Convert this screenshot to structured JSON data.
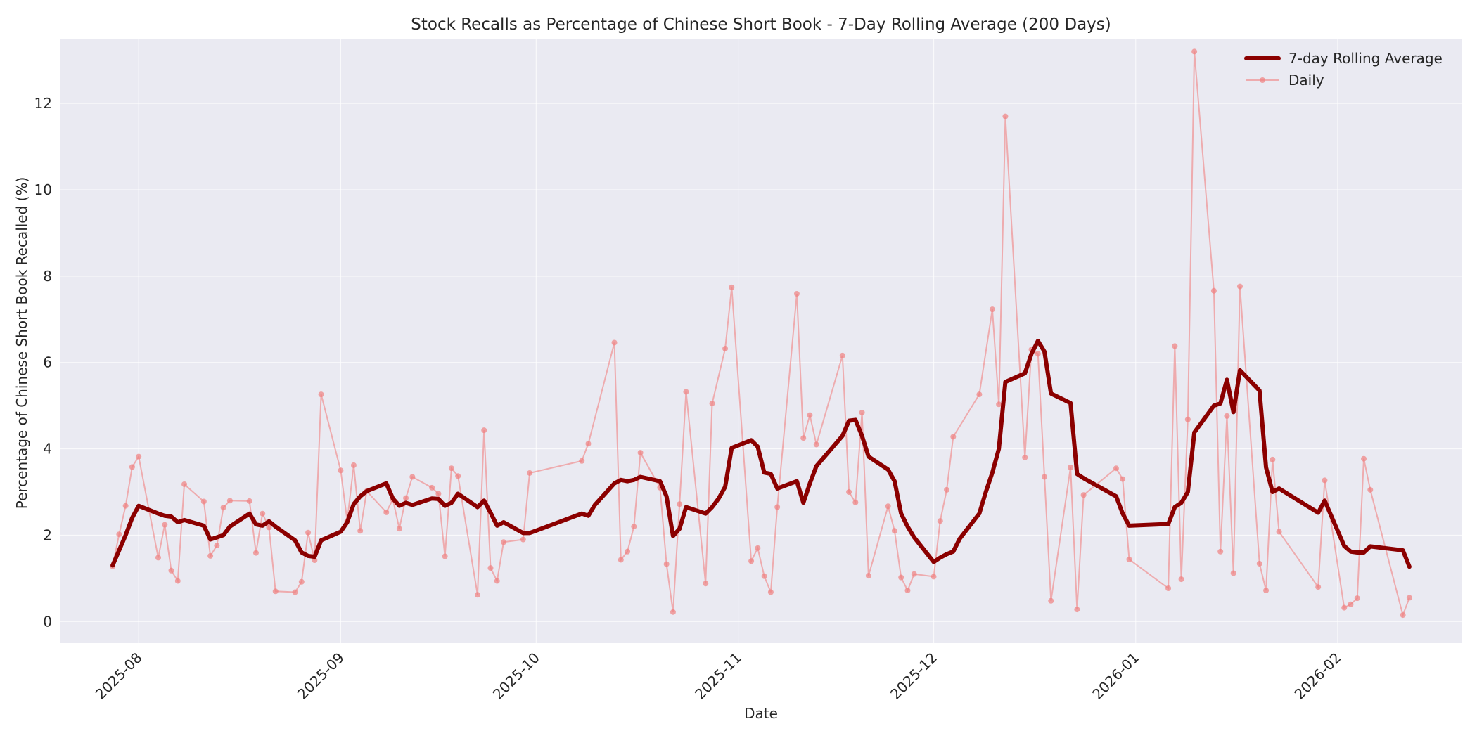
{
  "chart_data": {
    "type": "line",
    "title": "Stock Recalls as Percentage of Chinese Short Book - 7-Day Rolling Average (200 Days)",
    "xlabel": "Date",
    "ylabel": "Percentage of Chinese Short Book Recalled (%)",
    "ylim": [
      -0.5,
      13.5
    ],
    "yticks": [
      0,
      2,
      4,
      6,
      8,
      10,
      12
    ],
    "xticks": [
      "2025-08",
      "2025-09",
      "2025-10",
      "2025-11",
      "2025-12",
      "2026-01",
      "2026-02"
    ],
    "xlim": [
      "2025-07-20",
      "2026-02-20"
    ],
    "grid": true,
    "legend_position": "upper right",
    "colors": {
      "rolling": "#8b0000",
      "daily": "#f08080",
      "plot_bg": "#eaeaf2",
      "grid": "#ffffff"
    },
    "series": [
      {
        "name": "7-day Rolling Average",
        "style": "thick-line",
        "points": [
          [
            "2025-07-28",
            1.3
          ],
          [
            "2025-07-30",
            2.0
          ],
          [
            "2025-07-31",
            2.4
          ],
          [
            "2025-08-01",
            2.68
          ],
          [
            "2025-08-04",
            2.5
          ],
          [
            "2025-08-05",
            2.45
          ],
          [
            "2025-08-06",
            2.43
          ],
          [
            "2025-08-07",
            2.3
          ],
          [
            "2025-08-08",
            2.35
          ],
          [
            "2025-08-11",
            2.22
          ],
          [
            "2025-08-12",
            1.9
          ],
          [
            "2025-08-13",
            1.95
          ],
          [
            "2025-08-14",
            2.0
          ],
          [
            "2025-08-15",
            2.2
          ],
          [
            "2025-08-18",
            2.5
          ],
          [
            "2025-08-19",
            2.25
          ],
          [
            "2025-08-20",
            2.22
          ],
          [
            "2025-08-21",
            2.32
          ],
          [
            "2025-08-22",
            2.2
          ],
          [
            "2025-08-25",
            1.88
          ],
          [
            "2025-08-26",
            1.6
          ],
          [
            "2025-08-27",
            1.52
          ],
          [
            "2025-08-28",
            1.5
          ],
          [
            "2025-08-29",
            1.88
          ],
          [
            "2025-09-01",
            2.08
          ],
          [
            "2025-09-02",
            2.3
          ],
          [
            "2025-09-03",
            2.72
          ],
          [
            "2025-09-04",
            2.9
          ],
          [
            "2025-09-05",
            3.02
          ],
          [
            "2025-09-08",
            3.2
          ],
          [
            "2025-09-09",
            2.85
          ],
          [
            "2025-09-10",
            2.68
          ],
          [
            "2025-09-11",
            2.75
          ],
          [
            "2025-09-12",
            2.7
          ],
          [
            "2025-09-15",
            2.85
          ],
          [
            "2025-09-16",
            2.84
          ],
          [
            "2025-09-17",
            2.68
          ],
          [
            "2025-09-18",
            2.75
          ],
          [
            "2025-09-19",
            2.96
          ],
          [
            "2025-09-22",
            2.65
          ],
          [
            "2025-09-23",
            2.8
          ],
          [
            "2025-09-24",
            2.52
          ],
          [
            "2025-09-25",
            2.22
          ],
          [
            "2025-09-26",
            2.3
          ],
          [
            "2025-09-29",
            2.05
          ],
          [
            "2025-09-30",
            2.05
          ],
          [
            "2025-10-08",
            2.5
          ],
          [
            "2025-10-09",
            2.45
          ],
          [
            "2025-10-10",
            2.7
          ],
          [
            "2025-10-13",
            3.2
          ],
          [
            "2025-10-14",
            3.28
          ],
          [
            "2025-10-15",
            3.25
          ],
          [
            "2025-10-16",
            3.28
          ],
          [
            "2025-10-17",
            3.35
          ],
          [
            "2025-10-20",
            3.25
          ],
          [
            "2025-10-21",
            2.9
          ],
          [
            "2025-10-22",
            1.98
          ],
          [
            "2025-10-23",
            2.15
          ],
          [
            "2025-10-24",
            2.65
          ],
          [
            "2025-10-27",
            2.5
          ],
          [
            "2025-10-28",
            2.65
          ],
          [
            "2025-10-29",
            2.85
          ],
          [
            "2025-10-30",
            3.12
          ],
          [
            "2025-10-31",
            4.02
          ],
          [
            "2025-11-03",
            4.2
          ],
          [
            "2025-11-04",
            4.05
          ],
          [
            "2025-11-05",
            3.45
          ],
          [
            "2025-11-06",
            3.42
          ],
          [
            "2025-11-07",
            3.08
          ],
          [
            "2025-11-10",
            3.25
          ],
          [
            "2025-11-11",
            2.75
          ],
          [
            "2025-11-12",
            3.2
          ],
          [
            "2025-11-13",
            3.6
          ],
          [
            "2025-11-17",
            4.3
          ],
          [
            "2025-11-18",
            4.65
          ],
          [
            "2025-11-19",
            4.67
          ],
          [
            "2025-11-20",
            4.3
          ],
          [
            "2025-11-21",
            3.82
          ],
          [
            "2025-11-24",
            3.52
          ],
          [
            "2025-11-25",
            3.25
          ],
          [
            "2025-11-26",
            2.5
          ],
          [
            "2025-11-27",
            2.2
          ],
          [
            "2025-11-28",
            1.95
          ],
          [
            "2025-12-01",
            1.38
          ],
          [
            "2025-12-02",
            1.48
          ],
          [
            "2025-12-03",
            1.56
          ],
          [
            "2025-12-04",
            1.62
          ],
          [
            "2025-12-05",
            1.92
          ],
          [
            "2025-12-08",
            2.5
          ],
          [
            "2025-12-09",
            3.0
          ],
          [
            "2025-12-10",
            3.45
          ],
          [
            "2025-12-11",
            4.0
          ],
          [
            "2025-12-12",
            5.55
          ],
          [
            "2025-12-15",
            5.75
          ],
          [
            "2025-12-16",
            6.2
          ],
          [
            "2025-12-17",
            6.5
          ],
          [
            "2025-12-18",
            6.25
          ],
          [
            "2025-12-19",
            5.28
          ],
          [
            "2025-12-22",
            5.06
          ],
          [
            "2025-12-23",
            3.42
          ],
          [
            "2025-12-24",
            3.32
          ],
          [
            "2025-12-29",
            2.9
          ],
          [
            "2025-12-30",
            2.5
          ],
          [
            "2025-12-31",
            2.22
          ],
          [
            "2026-01-06",
            2.26
          ],
          [
            "2026-01-07",
            2.65
          ],
          [
            "2026-01-08",
            2.75
          ],
          [
            "2026-01-09",
            3.0
          ],
          [
            "2026-01-10",
            4.38
          ],
          [
            "2026-01-13",
            5.0
          ],
          [
            "2026-01-14",
            5.05
          ],
          [
            "2026-01-15",
            5.6
          ],
          [
            "2026-01-16",
            4.85
          ],
          [
            "2026-01-17",
            5.82
          ],
          [
            "2026-01-20",
            5.35
          ],
          [
            "2026-01-21",
            3.57
          ],
          [
            "2026-01-22",
            3.0
          ],
          [
            "2026-01-23",
            3.08
          ],
          [
            "2026-01-29",
            2.52
          ],
          [
            "2026-01-30",
            2.8
          ],
          [
            "2026-02-02",
            1.75
          ],
          [
            "2026-02-03",
            1.62
          ],
          [
            "2026-02-04",
            1.6
          ],
          [
            "2026-02-05",
            1.6
          ],
          [
            "2026-02-06",
            1.74
          ],
          [
            "2026-02-11",
            1.65
          ],
          [
            "2026-02-12",
            1.27
          ]
        ]
      },
      {
        "name": "Daily",
        "style": "thin-line-markers",
        "points": [
          [
            "2025-07-28",
            1.28
          ],
          [
            "2025-07-29",
            2.02
          ],
          [
            "2025-07-30",
            2.68
          ],
          [
            "2025-07-31",
            3.58
          ],
          [
            "2025-08-01",
            3.82
          ],
          [
            "2025-08-04",
            1.48
          ],
          [
            "2025-08-05",
            2.24
          ],
          [
            "2025-08-06",
            1.18
          ],
          [
            "2025-08-07",
            0.94
          ],
          [
            "2025-08-08",
            3.18
          ],
          [
            "2025-08-11",
            2.78
          ],
          [
            "2025-08-12",
            1.52
          ],
          [
            "2025-08-13",
            1.76
          ],
          [
            "2025-08-14",
            2.64
          ],
          [
            "2025-08-15",
            2.8
          ],
          [
            "2025-08-18",
            2.79
          ],
          [
            "2025-08-19",
            1.59
          ],
          [
            "2025-08-20",
            2.5
          ],
          [
            "2025-08-21",
            2.18
          ],
          [
            "2025-08-22",
            0.7
          ],
          [
            "2025-08-25",
            0.68
          ],
          [
            "2025-08-26",
            0.92
          ],
          [
            "2025-08-27",
            2.06
          ],
          [
            "2025-08-28",
            1.42
          ],
          [
            "2025-08-29",
            5.26
          ],
          [
            "2025-09-01",
            3.5
          ],
          [
            "2025-09-02",
            2.33
          ],
          [
            "2025-09-03",
            3.62
          ],
          [
            "2025-09-04",
            2.1
          ],
          [
            "2025-09-05",
            3.02
          ],
          [
            "2025-09-08",
            2.53
          ],
          [
            "2025-09-09",
            2.83
          ],
          [
            "2025-09-10",
            2.15
          ],
          [
            "2025-09-11",
            2.86
          ],
          [
            "2025-09-12",
            3.35
          ],
          [
            "2025-09-15",
            3.1
          ],
          [
            "2025-09-16",
            2.96
          ],
          [
            "2025-09-17",
            1.51
          ],
          [
            "2025-09-18",
            3.55
          ],
          [
            "2025-09-19",
            3.37
          ],
          [
            "2025-09-22",
            0.62
          ],
          [
            "2025-09-23",
            4.43
          ],
          [
            "2025-09-24",
            1.24
          ],
          [
            "2025-09-25",
            0.94
          ],
          [
            "2025-09-26",
            1.84
          ],
          [
            "2025-09-29",
            1.9
          ],
          [
            "2025-09-30",
            3.44
          ],
          [
            "2025-10-08",
            3.72
          ],
          [
            "2025-10-09",
            4.12
          ],
          [
            "2025-10-13",
            6.46
          ],
          [
            "2025-10-14",
            1.43
          ],
          [
            "2025-10-15",
            1.62
          ],
          [
            "2025-10-16",
            2.2
          ],
          [
            "2025-10-17",
            3.91
          ],
          [
            "2025-10-20",
            3.1
          ],
          [
            "2025-10-21",
            1.33
          ],
          [
            "2025-10-22",
            0.22
          ],
          [
            "2025-10-23",
            2.72
          ],
          [
            "2025-10-24",
            5.32
          ],
          [
            "2025-10-27",
            0.88
          ],
          [
            "2025-10-28",
            5.05
          ],
          [
            "2025-10-30",
            6.32
          ],
          [
            "2025-10-31",
            7.74
          ],
          [
            "2025-11-03",
            1.4
          ],
          [
            "2025-11-04",
            1.7
          ],
          [
            "2025-11-05",
            1.05
          ],
          [
            "2025-11-06",
            0.68
          ],
          [
            "2025-11-07",
            2.65
          ],
          [
            "2025-11-10",
            7.59
          ],
          [
            "2025-11-11",
            4.25
          ],
          [
            "2025-11-12",
            4.78
          ],
          [
            "2025-11-13",
            4.1
          ],
          [
            "2025-11-17",
            6.16
          ],
          [
            "2025-11-18",
            3.0
          ],
          [
            "2025-11-19",
            2.76
          ],
          [
            "2025-11-20",
            4.84
          ],
          [
            "2025-11-21",
            1.06
          ],
          [
            "2025-11-24",
            2.67
          ],
          [
            "2025-11-25",
            2.1
          ],
          [
            "2025-11-26",
            1.02
          ],
          [
            "2025-11-27",
            0.72
          ],
          [
            "2025-11-28",
            1.1
          ],
          [
            "2025-12-01",
            1.04
          ],
          [
            "2025-12-02",
            2.33
          ],
          [
            "2025-12-03",
            3.05
          ],
          [
            "2025-12-04",
            4.28
          ],
          [
            "2025-12-08",
            5.26
          ],
          [
            "2025-12-10",
            7.23
          ],
          [
            "2025-12-11",
            5.03
          ],
          [
            "2025-12-12",
            11.7
          ],
          [
            "2025-12-15",
            3.8
          ],
          [
            "2025-12-16",
            6.3
          ],
          [
            "2025-12-17",
            6.2
          ],
          [
            "2025-12-18",
            3.35
          ],
          [
            "2025-12-19",
            0.48
          ],
          [
            "2025-12-22",
            3.57
          ],
          [
            "2025-12-23",
            0.28
          ],
          [
            "2025-12-24",
            2.93
          ],
          [
            "2025-12-29",
            3.55
          ],
          [
            "2025-12-30",
            3.3
          ],
          [
            "2025-12-31",
            1.44
          ],
          [
            "2026-01-06",
            0.77
          ],
          [
            "2026-01-07",
            6.38
          ],
          [
            "2026-01-08",
            0.98
          ],
          [
            "2026-01-09",
            4.68
          ],
          [
            "2026-01-10",
            13.2
          ],
          [
            "2026-01-13",
            7.66
          ],
          [
            "2026-01-14",
            1.62
          ],
          [
            "2026-01-15",
            4.76
          ],
          [
            "2026-01-16",
            1.12
          ],
          [
            "2026-01-17",
            7.76
          ],
          [
            "2026-01-20",
            1.34
          ],
          [
            "2026-01-21",
            0.72
          ],
          [
            "2026-01-22",
            3.75
          ],
          [
            "2026-01-23",
            2.08
          ],
          [
            "2026-01-29",
            0.8
          ],
          [
            "2026-01-30",
            3.27
          ],
          [
            "2026-02-02",
            0.32
          ],
          [
            "2026-02-03",
            0.4
          ],
          [
            "2026-02-04",
            0.54
          ],
          [
            "2026-02-05",
            3.77
          ],
          [
            "2026-02-06",
            3.05
          ],
          [
            "2026-02-11",
            0.15
          ],
          [
            "2026-02-12",
            0.55
          ]
        ]
      }
    ]
  }
}
